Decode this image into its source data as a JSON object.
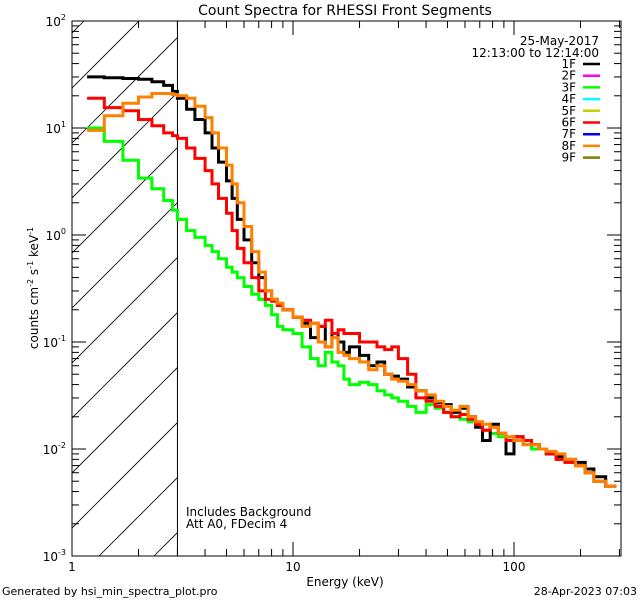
{
  "chart_data": {
    "type": "line",
    "title": "Count Spectra for RHESSI Front Segments",
    "xlabel": "Energy (keV)",
    "ylabel": "counts cm",
    "ylabel_parts": [
      "counts cm",
      "-2",
      " s",
      "-1",
      " keV",
      "-1"
    ],
    "xscale": "log",
    "yscale": "log",
    "xlim": [
      1,
      300
    ],
    "ylim": [
      0.001,
      100
    ],
    "x_tick_labels": [
      {
        "value": 1,
        "label": "1"
      },
      {
        "value": 10,
        "label": "10"
      },
      {
        "value": 100,
        "label": "100"
      }
    ],
    "y_tick_labels": [
      {
        "value": 100,
        "base": "10",
        "exp": "2"
      },
      {
        "value": 10,
        "base": "10",
        "exp": "1"
      },
      {
        "value": 1,
        "base": "10",
        "exp": "0"
      },
      {
        "value": 0.1,
        "base": "10",
        "exp": "-1"
      },
      {
        "value": 0.01,
        "base": "10",
        "exp": "-2"
      },
      {
        "value": 0.001,
        "base": "10",
        "exp": "-3"
      }
    ],
    "shaded_region_max_energy": 3,
    "legend_placement": "top-right",
    "legend_header": [
      "25-May-2017",
      "12:13:00 to 12:14:00"
    ],
    "legend": [
      {
        "name": "1F",
        "color": "#000000"
      },
      {
        "name": "2F",
        "color": "#ff00ff"
      },
      {
        "name": "3F",
        "color": "#00ff00"
      },
      {
        "name": "4F",
        "color": "#00ffff"
      },
      {
        "name": "5F",
        "color": "#cccc00"
      },
      {
        "name": "6F",
        "color": "#ff0000"
      },
      {
        "name": "7F",
        "color": "#0000ff"
      },
      {
        "name": "8F",
        "color": "#ff8000"
      },
      {
        "name": "9F",
        "color": "#808000"
      }
    ],
    "annotations": [
      "Includes Background",
      "Att A0, FDecim 4"
    ],
    "energy_bin_edges": [
      1.17,
      1.4,
      1.7,
      2.0,
      2.3,
      2.6,
      2.85,
      3.0,
      3.3,
      3.6,
      4.0,
      4.3,
      4.6,
      5.0,
      5.3,
      5.6,
      6.0,
      6.5,
      7.0,
      7.5,
      8.0,
      8.5,
      9.0,
      10,
      11,
      12,
      13,
      14,
      15,
      16,
      17,
      18,
      20,
      22,
      24,
      26,
      28,
      30,
      33,
      36,
      40,
      44,
      48,
      52,
      57,
      62,
      67,
      72,
      78,
      85,
      92,
      100,
      110,
      120,
      130,
      140,
      155,
      170,
      190,
      210,
      230,
      260,
      290
    ],
    "series": [
      {
        "name": "3F",
        "color": "#00ff00",
        "values": [
          10,
          7.5,
          5,
          3.4,
          2.7,
          2.1,
          1.7,
          1.4,
          1.1,
          0.95,
          0.8,
          0.7,
          0.6,
          0.5,
          0.45,
          0.4,
          0.33,
          0.28,
          0.25,
          0.22,
          0.18,
          0.14,
          0.13,
          0.12,
          0.09,
          0.07,
          0.06,
          0.08,
          0.065,
          0.06,
          0.045,
          0.04,
          0.042,
          0.04,
          0.035,
          0.032,
          0.03,
          0.028,
          0.025,
          0.022,
          0.026,
          0.024,
          0.022,
          0.02,
          0.019,
          0.018,
          0.017,
          0.015,
          0.014,
          0.013,
          0.012,
          0.012,
          0.011,
          0.01,
          0.01,
          0.009,
          0.008,
          0.0075,
          0.007,
          0.006,
          0.005,
          0.0045
        ]
      },
      {
        "name": "1F",
        "color": "#000000",
        "values": [
          30,
          29.5,
          29,
          28.5,
          27,
          25,
          22,
          19,
          15,
          12,
          9,
          6.5,
          4.8,
          3.2,
          2.2,
          1.4,
          0.9,
          0.55,
          0.4,
          0.3,
          0.25,
          0.22,
          0.2,
          0.17,
          0.15,
          0.11,
          0.14,
          0.09,
          0.12,
          0.1,
          0.08,
          0.09,
          0.075,
          0.06,
          0.065,
          0.05,
          0.048,
          0.045,
          0.038,
          0.035,
          0.03,
          0.027,
          0.026,
          0.022,
          0.024,
          0.02,
          0.016,
          0.012,
          0.017,
          0.014,
          0.009,
          0.013,
          0.012,
          0.011,
          0.01,
          0.009,
          0.0085,
          0.008,
          0.0075,
          0.0065,
          0.0055,
          0.0045
        ]
      },
      {
        "name": "6F",
        "color": "#ff0000",
        "values": [
          19,
          15.5,
          14.5,
          12,
          10.5,
          9,
          8.5,
          8,
          6.5,
          5.2,
          4,
          3,
          2.2,
          1.6,
          1.1,
          0.75,
          0.55,
          0.4,
          0.3,
          0.25,
          0.24,
          0.22,
          0.2,
          0.17,
          0.16,
          0.15,
          0.14,
          0.16,
          0.12,
          0.13,
          0.12,
          0.12,
          0.1,
          0.1,
          0.09,
          0.085,
          0.09,
          0.07,
          0.05,
          0.03,
          0.028,
          0.025,
          0.022,
          0.02,
          0.021,
          0.019,
          0.017,
          0.015,
          0.016,
          0.014,
          0.012,
          0.013,
          0.012,
          0.011,
          0.01,
          0.009,
          0.008,
          0.0075,
          0.007,
          0.006,
          0.005,
          0.0045
        ]
      },
      {
        "name": "8F",
        "color": "#ff8000",
        "values": [
          9.5,
          13,
          17,
          19.5,
          21,
          21,
          20.5,
          20,
          19,
          16,
          12.5,
          9,
          6.5,
          4.5,
          3,
          2,
          1.2,
          0.7,
          0.45,
          0.3,
          0.25,
          0.23,
          0.2,
          0.17,
          0.14,
          0.15,
          0.1,
          0.09,
          0.11,
          0.08,
          0.075,
          0.07,
          0.065,
          0.055,
          0.06,
          0.05,
          0.045,
          0.043,
          0.04,
          0.035,
          0.032,
          0.028,
          0.025,
          0.023,
          0.025,
          0.02,
          0.018,
          0.017,
          0.016,
          0.014,
          0.013,
          0.012,
          0.011,
          0.011,
          0.01,
          0.0095,
          0.009,
          0.008,
          0.007,
          0.006,
          0.005,
          0.0045
        ]
      }
    ]
  },
  "footer": {
    "generated_by": "Generated by hsi_min_spectra_plot.pro",
    "timestamp": "28-Apr-2023 07:03"
  }
}
